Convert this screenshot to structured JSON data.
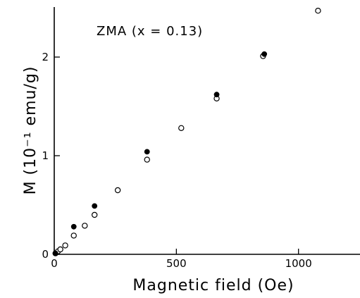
{
  "chart_data": {
    "type": "scatter",
    "annotation": "ZMA (x = 0.13)",
    "xlabel": "Magnetic field (Oe)",
    "ylabel": "M (10⁻¹ emu/g)",
    "xlim": [
      0,
      1200
    ],
    "ylim": [
      0,
      2.5
    ],
    "xticks": [
      0,
      500,
      1000
    ],
    "yticks": [
      0,
      1,
      2
    ],
    "grid": false,
    "series": [
      {
        "marker": "open-circle",
        "points": [
          {
            "x": 5,
            "y": 0.01
          },
          {
            "x": 15,
            "y": 0.03
          },
          {
            "x": 25,
            "y": 0.05
          },
          {
            "x": 45,
            "y": 0.09
          },
          {
            "x": 80,
            "y": 0.19
          },
          {
            "x": 125,
            "y": 0.29
          },
          {
            "x": 165,
            "y": 0.4
          },
          {
            "x": 260,
            "y": 0.65
          },
          {
            "x": 380,
            "y": 0.96
          },
          {
            "x": 520,
            "y": 1.28
          },
          {
            "x": 665,
            "y": 1.58
          },
          {
            "x": 855,
            "y": 2.01
          },
          {
            "x": 1080,
            "y": 2.47
          }
        ]
      },
      {
        "marker": "filled-circle",
        "points": [
          {
            "x": 5,
            "y": 0.01
          },
          {
            "x": 80,
            "y": 0.28
          },
          {
            "x": 165,
            "y": 0.49
          },
          {
            "x": 380,
            "y": 1.04
          },
          {
            "x": 665,
            "y": 1.62
          },
          {
            "x": 860,
            "y": 2.03
          }
        ]
      }
    ]
  }
}
